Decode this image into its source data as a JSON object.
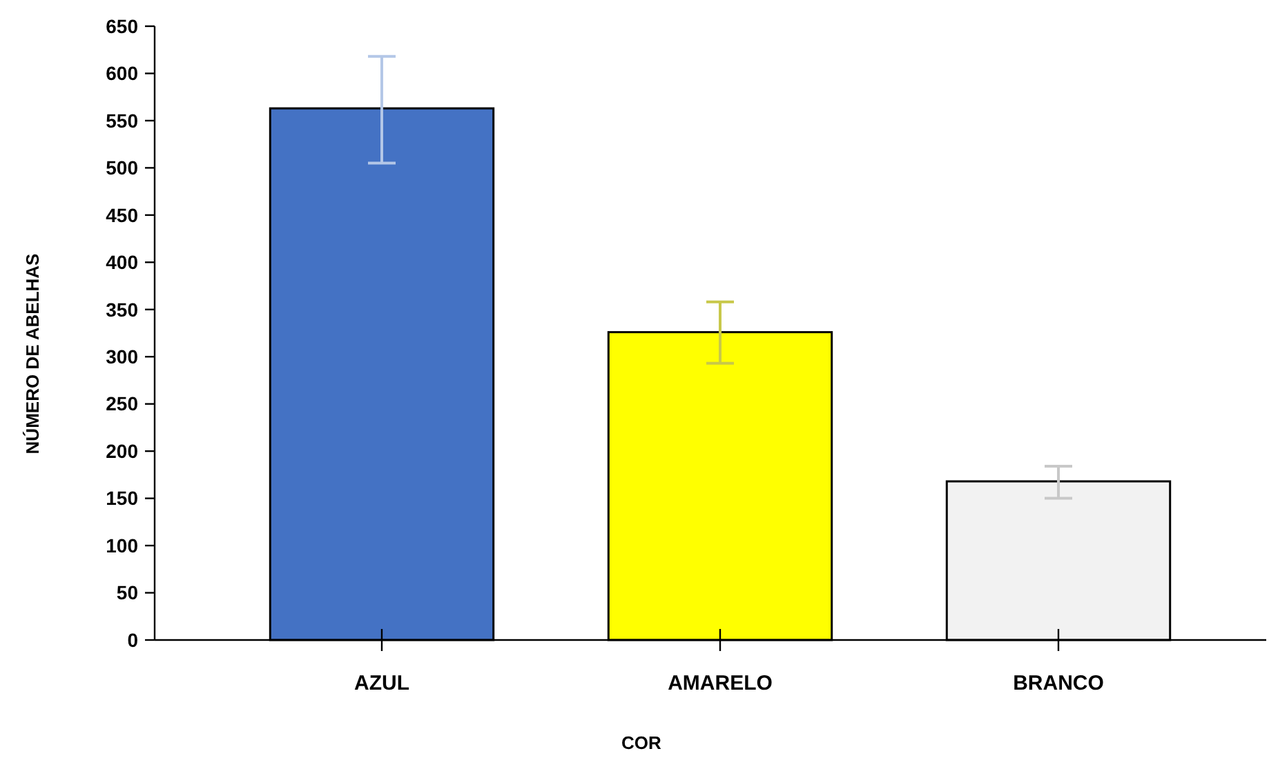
{
  "chart_data": {
    "type": "bar",
    "xlabel": "COR",
    "ylabel": "NÚMERO DE ABELHAS",
    "categories": [
      "AZUL",
      "AMARELO",
      "BRANCO"
    ],
    "values": [
      563,
      326,
      168
    ],
    "colors": [
      "#4472c4",
      "#ffff00",
      "#f2f2f2"
    ],
    "errors": [
      [
        505,
        618
      ],
      [
        293,
        358
      ],
      [
        150,
        184
      ]
    ],
    "ylim": [
      0,
      650
    ],
    "yticks": [
      0,
      50,
      100,
      150,
      200,
      250,
      300,
      350,
      400,
      450,
      500,
      550,
      600,
      650
    ],
    "grid": false
  }
}
